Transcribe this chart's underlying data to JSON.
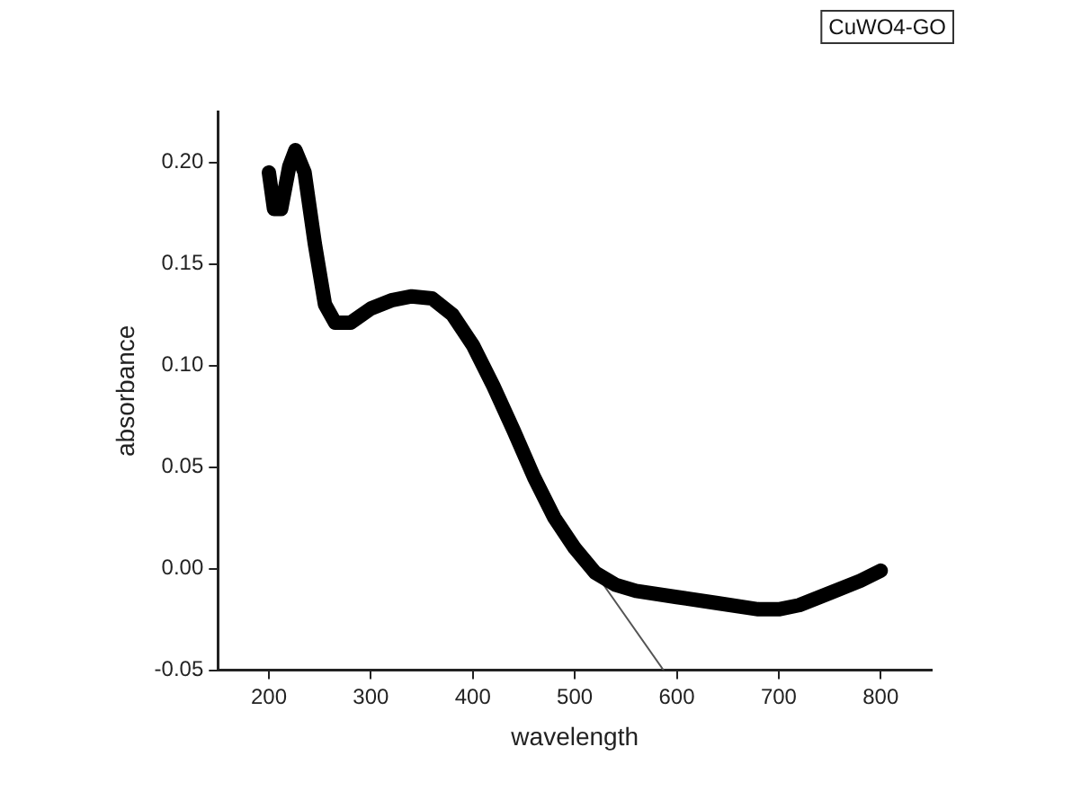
{
  "chart_data": {
    "type": "line",
    "xlabel": "wavelength",
    "ylabel": "absorbance",
    "annotations": [
      "CuWO4-GO"
    ],
    "xlim": [
      150,
      850
    ],
    "xticks": [
      200,
      300,
      400,
      500,
      600,
      700,
      800
    ],
    "ylim": [
      -0.05,
      0.225
    ],
    "yticks": [
      {
        "value": -0.05,
        "label": "-0.05"
      },
      {
        "value": 0,
        "label": "0.00"
      },
      {
        "value": 0.05,
        "label": "0.05"
      },
      {
        "value": 0.1,
        "label": "0.10"
      },
      {
        "value": 0.15,
        "label": "0.15"
      },
      {
        "value": 0.2,
        "label": "0.20"
      }
    ],
    "grid": false,
    "legend": false,
    "marker": "none",
    "line_style": "solid",
    "series": [
      {
        "color": "#000000",
        "x": [
          200,
          205,
          212,
          220,
          226,
          235,
          245,
          255,
          265,
          280,
          300,
          320,
          340,
          360,
          380,
          400,
          420,
          440,
          460,
          480,
          500,
          520,
          540,
          560,
          600,
          640,
          680,
          700,
          720,
          750,
          780,
          800
        ],
        "values": [
          0.195,
          0.177,
          0.177,
          0.198,
          0.206,
          0.195,
          0.16,
          0.13,
          0.121,
          0.121,
          0.128,
          0.132,
          0.134,
          0.133,
          0.125,
          0.11,
          0.09,
          0.068,
          0.045,
          0.025,
          0.01,
          -0.002,
          -0.008,
          -0.011,
          -0.014,
          -0.017,
          -0.02,
          -0.02,
          -0.018,
          -0.012,
          -0.006,
          -0.001
        ]
      },
      {
        "type": "line",
        "color": "#555555",
        "x": [
          510,
          587
        ],
        "values": [
          0.005,
          -0.05
        ]
      }
    ]
  }
}
